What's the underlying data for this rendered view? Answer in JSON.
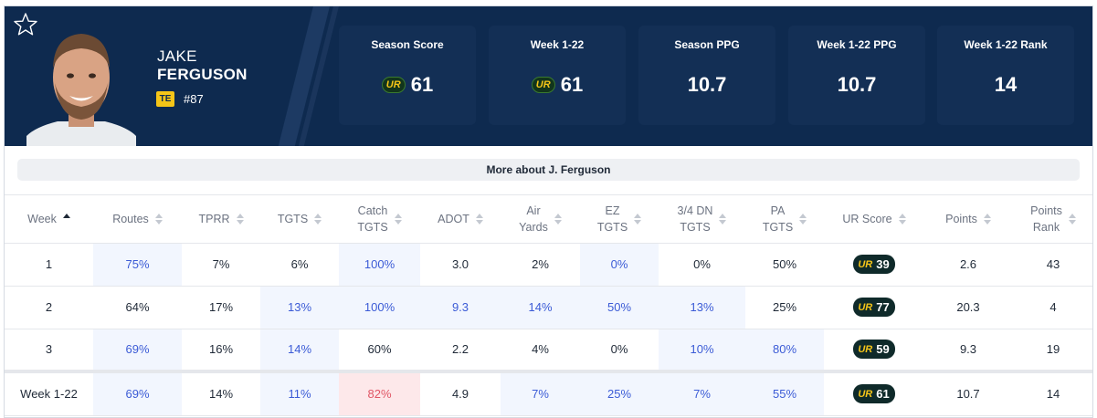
{
  "player": {
    "first_name": "JAKE",
    "last_name": "FERGUSON",
    "position": "TE",
    "jersey": "#87"
  },
  "stats": [
    {
      "label": "Season Score",
      "value": "61",
      "ur_logo": true
    },
    {
      "label": "Week 1-22",
      "value": "61",
      "ur_logo": true
    },
    {
      "label": "Season PPG",
      "value": "10.7",
      "ur_logo": false
    },
    {
      "label": "Week 1-22 PPG",
      "value": "10.7",
      "ur_logo": false
    },
    {
      "label": "Week 1-22 Rank",
      "value": "14",
      "ur_logo": false
    }
  ],
  "ur_logo_text": "UR",
  "more_about": "More about J. Ferguson",
  "table": {
    "headers": [
      "Week",
      "Routes",
      "TPRR",
      "TGTS",
      "Catch TGTS",
      "ADOT",
      "Air Yards",
      "EZ TGTS",
      "3/4 DN TGTS",
      "PA TGTS",
      "UR Score",
      "Points",
      "Points Rank"
    ],
    "header_lines": [
      [
        "Week"
      ],
      [
        "Routes"
      ],
      [
        "TPRR"
      ],
      [
        "TGTS"
      ],
      [
        "Catch",
        "TGTS"
      ],
      [
        "ADOT"
      ],
      [
        "Air",
        "Yards"
      ],
      [
        "EZ",
        "TGTS"
      ],
      [
        "3/4 DN",
        "TGTS"
      ],
      [
        "PA",
        "TGTS"
      ],
      [
        "UR Score"
      ],
      [
        "Points"
      ],
      [
        "Points",
        "Rank"
      ]
    ],
    "rows": [
      {
        "cells": [
          "1",
          "75%",
          "7%",
          "6%",
          "100%",
          "3.0",
          "2%",
          "0%",
          "0%",
          "50%",
          "39",
          "2.6",
          "43"
        ],
        "highlight": [
          1,
          4,
          7
        ]
      },
      {
        "cells": [
          "2",
          "64%",
          "17%",
          "13%",
          "100%",
          "9.3",
          "14%",
          "50%",
          "13%",
          "25%",
          "77",
          "20.3",
          "4"
        ],
        "highlight": [
          3,
          4,
          5,
          6,
          7,
          8
        ]
      },
      {
        "cells": [
          "3",
          "69%",
          "16%",
          "14%",
          "60%",
          "2.2",
          "4%",
          "0%",
          "10%",
          "80%",
          "59",
          "9.3",
          "19"
        ],
        "highlight": [
          1,
          3,
          8,
          9
        ]
      },
      {
        "cells": [
          "Week 1-22",
          "69%",
          "14%",
          "11%",
          "82%",
          "4.9",
          "7%",
          "25%",
          "7%",
          "55%",
          "61",
          "10.7",
          "14"
        ],
        "highlight": [
          1,
          3,
          6,
          7,
          8,
          9
        ],
        "red": [
          4
        ]
      }
    ]
  },
  "colors": {
    "header_bg": "#0e2a4f",
    "stat_box_bg": "#132f55",
    "accent_yellow": "#f5c518",
    "highlight_bg": "#f2f6fe",
    "highlight_text": "#3b5bd6",
    "negative_bg": "#fde8ea",
    "negative_text": "#e05565"
  },
  "icons": [
    "star-icon",
    "ur-logo-icon",
    "sort-arrows-icon"
  ]
}
